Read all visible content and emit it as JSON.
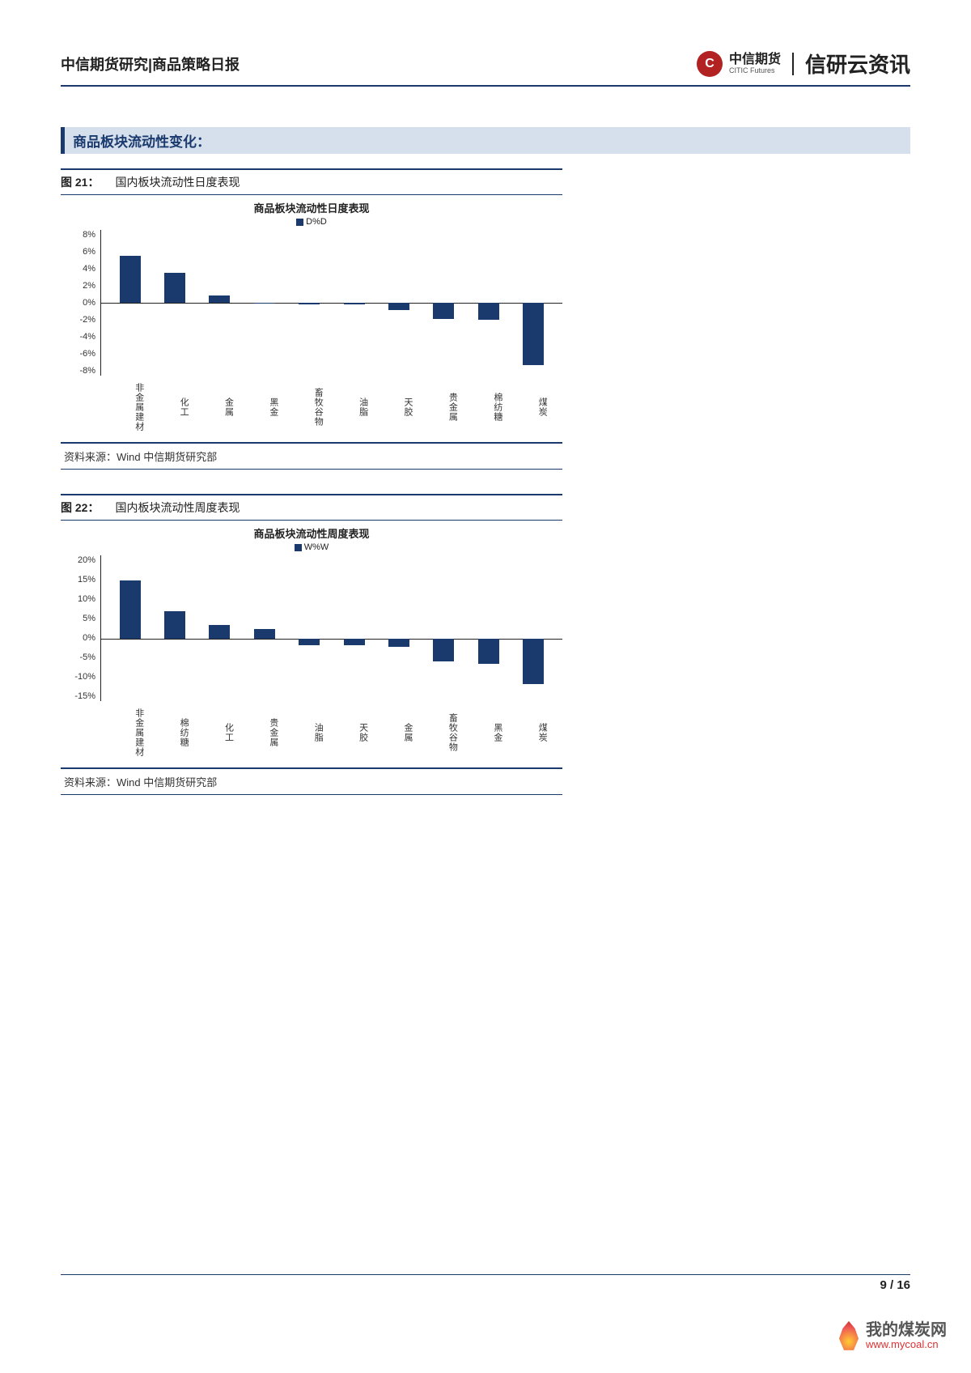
{
  "header": {
    "title": "中信期货研究|商品策略日报",
    "logo_text_main": "中信期货",
    "logo_text_sub": "CITIC Futures",
    "logo_text_right": "信研云资讯",
    "logo_glyph": "C"
  },
  "section": {
    "title": "商品板块流动性变化："
  },
  "fig21": {
    "num": "图 21：",
    "title": "国内板块流动性日度表现",
    "chart_title": "商品板块流动性日度表现",
    "legend": "D%D",
    "type": "bar",
    "ylim": [
      -8,
      8
    ],
    "ytick_step": 2,
    "yticks": [
      "8%",
      "6%",
      "4%",
      "2%",
      "0%",
      "-2%",
      "-4%",
      "-6%",
      "-8%"
    ],
    "categories": [
      "非金属建材",
      "化工",
      "金属",
      "黑金",
      "畜牧谷物",
      "油脂",
      "天胶",
      "贵金属",
      "棉纺糖",
      "煤炭"
    ],
    "values": [
      5.2,
      3.3,
      0.8,
      -0.1,
      -0.2,
      -0.2,
      -0.8,
      -1.8,
      -1.9,
      -6.8
    ],
    "bar_color": "#1a3a6e",
    "axis_color": "#222222",
    "background_color": "#ffffff",
    "source": "资料来源：Wind  中信期货研究部"
  },
  "fig22": {
    "num": "图 22：",
    "title": "国内板块流动性周度表现",
    "chart_title": "商品板块流动性周度表现",
    "legend": "W%W",
    "type": "bar",
    "ylim": [
      -15,
      20
    ],
    "ytick_step": 5,
    "yticks": [
      "20%",
      "15%",
      "10%",
      "5%",
      "0%",
      "-5%",
      "-10%",
      "-15%"
    ],
    "categories": [
      "非金属建材",
      "棉纺糖",
      "化工",
      "贵金属",
      "油脂",
      "天胶",
      "金属",
      "畜牧谷物",
      "黑金",
      "煤炭"
    ],
    "values": [
      14.0,
      6.5,
      3.2,
      2.4,
      -1.5,
      -1.6,
      -2.0,
      -5.5,
      -6.0,
      -11.0
    ],
    "bar_color": "#1a3a6e",
    "axis_color": "#222222",
    "background_color": "#ffffff",
    "source": "资料来源：Wind  中信期货研究部"
  },
  "footer": {
    "page": "9 / 16"
  },
  "watermark": {
    "cn": "我的煤炭网",
    "en": "www.mycoal.cn"
  }
}
